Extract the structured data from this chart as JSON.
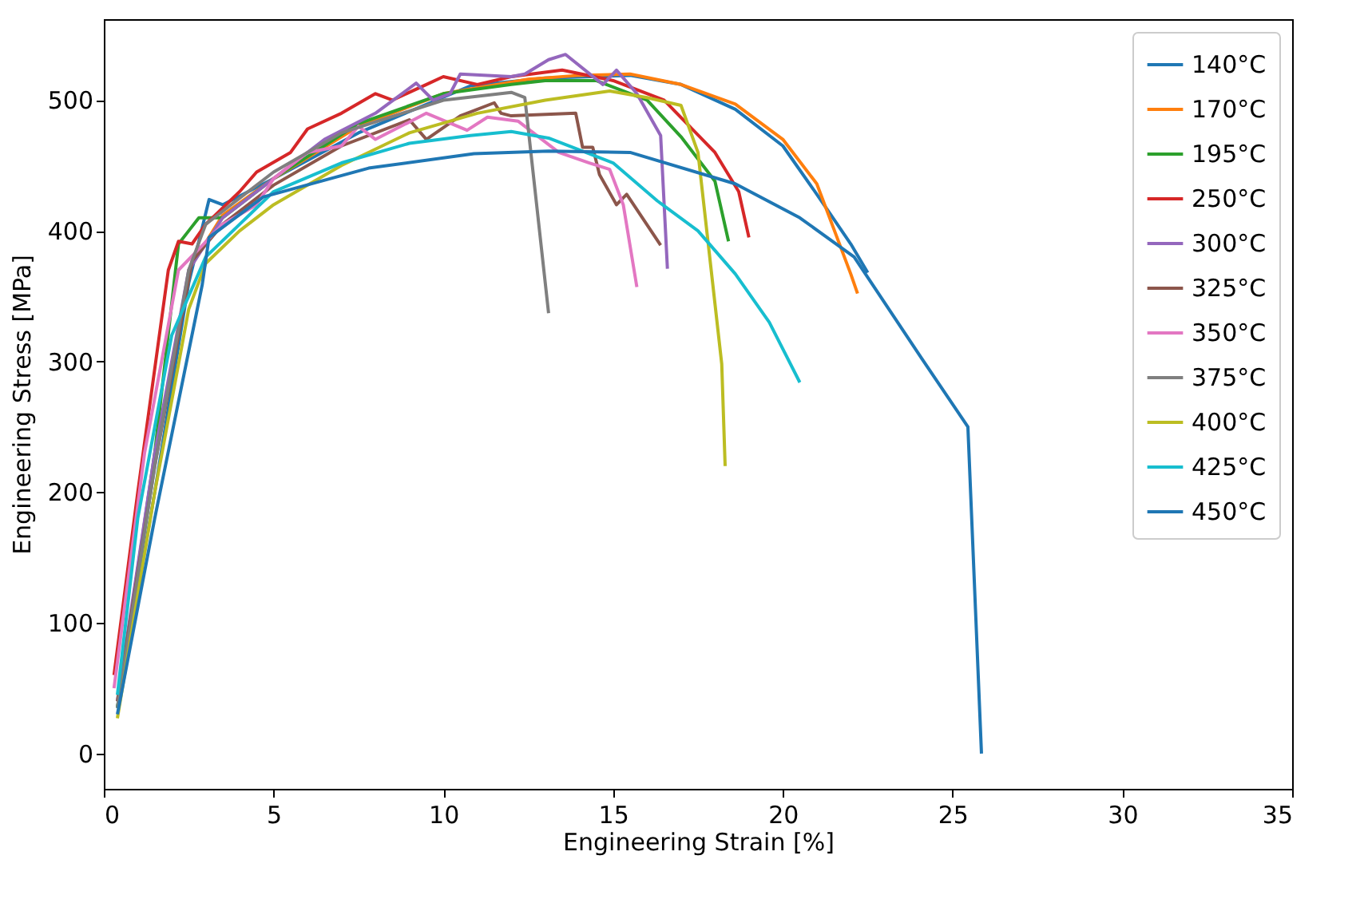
{
  "chart_data": {
    "type": "line",
    "xlabel": "Engineering Strain [%]",
    "ylabel": "Engineering Stress [MPa]",
    "xlim": [
      0,
      35
    ],
    "ylim": [
      -27,
      562
    ],
    "xticks": [
      0,
      5,
      10,
      15,
      20,
      25,
      30,
      35
    ],
    "yticks": [
      0,
      100,
      200,
      300,
      400,
      500
    ],
    "grid": false,
    "legend": "top right",
    "marker": "none",
    "line_style": "solid",
    "series": [
      {
        "name": "140°C",
        "color": "#1f77b4",
        "x": [
          0.4,
          1.5,
          2.5,
          3.1,
          3.5,
          5,
          7.5,
          10.8,
          13,
          15.5,
          17,
          18.6,
          20,
          21,
          22,
          22.5
        ],
        "values": [
          35,
          200,
          360,
          424,
          420,
          440,
          475,
          511,
          517,
          519,
          512,
          493,
          465,
          428,
          390,
          368
        ]
      },
      {
        "name": "170°C",
        "color": "#ff7f0e",
        "x": [
          2.5,
          3.5,
          5,
          7.5,
          10,
          12.5,
          14,
          15.5,
          17,
          18.6,
          20,
          21,
          22,
          22.2
        ],
        "values": [
          370,
          412,
          440,
          480,
          505,
          516,
          519,
          520,
          512,
          497,
          470,
          436,
          367,
          352
        ]
      },
      {
        "name": "195°C",
        "color": "#2ca02c",
        "x": [
          0.4,
          1.5,
          2.2,
          2.5,
          2.8,
          3.5,
          5,
          7.5,
          10,
          12,
          13,
          14.5,
          16,
          17,
          18,
          18.4
        ],
        "values": [
          35,
          230,
          390,
          400,
          410,
          410,
          440,
          482,
          505,
          512,
          515,
          515,
          500,
          472,
          438,
          392
        ]
      },
      {
        "name": "250°C",
        "color": "#d62728",
        "x": [
          0.3,
          1,
          1.9,
          2.2,
          2.6,
          3,
          4,
          4.5,
          5.5,
          6,
          7,
          8,
          8.5,
          9.5,
          10,
          11,
          12,
          13.5,
          15,
          16.5,
          18,
          18.7,
          19
        ],
        "values": [
          60,
          200,
          370,
          392,
          390,
          405,
          430,
          445,
          460,
          478,
          490,
          505,
          500,
          512,
          518,
          512,
          518,
          523,
          515,
          500,
          460,
          430,
          395
        ]
      },
      {
        "name": "300°C",
        "color": "#9467bd",
        "x": [
          0.4,
          1.5,
          2.5,
          3.5,
          5,
          6.5,
          8,
          9.2,
          9.7,
          10.2,
          10.5,
          12,
          12.4,
          13.1,
          13.6,
          14.7,
          15.1,
          15.7,
          16.4,
          16.6
        ],
        "values": [
          40,
          230,
          370,
          410,
          440,
          470,
          490,
          513,
          500,
          505,
          520,
          518,
          520,
          531,
          535,
          512,
          523,
          505,
          473,
          371
        ]
      },
      {
        "name": "325°C",
        "color": "#8c564b",
        "x": [
          0.4,
          1.5,
          2.6,
          3.5,
          5,
          7,
          9,
          9.5,
          10.5,
          11.5,
          11.7,
          12,
          13.9,
          14.1,
          14.4,
          14.6,
          15.1,
          15.4,
          16.4
        ],
        "values": [
          40,
          220,
          377,
          405,
          435,
          465,
          485,
          470,
          488,
          498,
          490,
          488,
          490,
          464,
          464,
          443,
          420,
          428,
          389
        ]
      },
      {
        "name": "350°C",
        "color": "#e377c2",
        "x": [
          0.3,
          1.2,
          2.2,
          3.5,
          4.5,
          5,
          6,
          7,
          7.5,
          8,
          9.5,
          10.7,
          11.3,
          12.2,
          13.4,
          14.3,
          14.9,
          15.3,
          15.7
        ],
        "values": [
          50,
          230,
          370,
          405,
          420,
          440,
          460,
          465,
          480,
          470,
          490,
          477,
          487,
          484,
          460,
          452,
          447,
          420,
          357
        ]
      },
      {
        "name": "375°C",
        "color": "#7f7f7f",
        "x": [
          0.4,
          1.5,
          2.5,
          3,
          5,
          7,
          10,
          12,
          12.4,
          13.1
        ],
        "values": [
          35,
          220,
          370,
          405,
          445,
          475,
          500,
          506,
          502,
          337
        ]
      },
      {
        "name": "400°C",
        "color": "#bcbd22",
        "x": [
          0.4,
          1.5,
          2.5,
          3,
          4,
          5,
          7,
          9,
          11,
          13,
          14.9,
          16,
          17,
          17.5,
          18.2,
          18.3
        ],
        "values": [
          27,
          200,
          340,
          375,
          400,
          420,
          450,
          475,
          490,
          500,
          507,
          502,
          496,
          460,
          298,
          220
        ]
      },
      {
        "name": "425°C",
        "color": "#17becf",
        "x": [
          0.4,
          1,
          2,
          3,
          5,
          7,
          9,
          10.8,
          12,
          13.1,
          15,
          16.3,
          17.5,
          18.6,
          19.6,
          20.5
        ],
        "values": [
          45,
          180,
          320,
          380,
          430,
          452,
          467,
          473,
          476,
          471,
          452,
          423,
          400,
          367,
          330,
          284
        ]
      },
      {
        "name": "450°C",
        "color": "#1f77b4",
        "x": [
          0.4,
          1.5,
          2.9,
          3.1,
          4.7,
          7.8,
          10.9,
          13.1,
          15.5,
          18.6,
          20.5,
          22.1,
          24.1,
          25.45,
          25.85
        ],
        "values": [
          30,
          180,
          359,
          395,
          426,
          448,
          459,
          461,
          460,
          436,
          410,
          380,
          302,
          250,
          0
        ]
      }
    ]
  }
}
